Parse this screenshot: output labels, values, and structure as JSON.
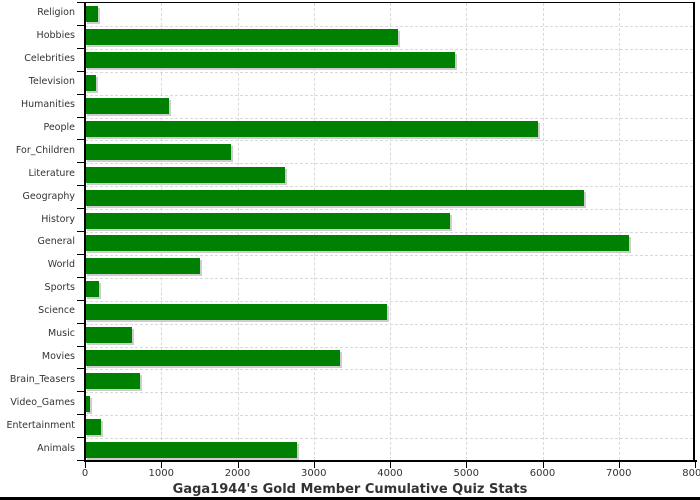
{
  "title": "Gaga1944's Gold Member Cumulative Quiz Stats",
  "colors": {
    "bar": "#008000",
    "bar_shadow": "#cdcdcd",
    "grid": "#d9d9d9",
    "axis": "#000000",
    "text": "#333333",
    "background": "#ffffff"
  },
  "chart_data": {
    "type": "bar",
    "orientation": "horizontal",
    "title": "Gaga1944's Gold Member Cumulative Quiz Stats",
    "categories": [
      "Religion",
      "Hobbies",
      "Celebrities",
      "Television",
      "Humanities",
      "People",
      "For_Children",
      "Literature",
      "Geography",
      "History",
      "General",
      "World",
      "Sports",
      "Science",
      "Music",
      "Movies",
      "Brain_Teasers",
      "Video_Games",
      "Entertainment",
      "Animals"
    ],
    "values": [
      170,
      4100,
      4850,
      150,
      1100,
      5940,
      1910,
      2620,
      6550,
      4790,
      7140,
      1510,
      190,
      3960,
      620,
      3350,
      720,
      60,
      210,
      2780
    ],
    "xlabel": "",
    "ylabel": "",
    "xlim": [
      0,
      8000
    ],
    "xticks": [
      0,
      1000,
      2000,
      3000,
      4000,
      5000,
      6000,
      7000,
      8000
    ],
    "grid": true,
    "legend": false
  }
}
